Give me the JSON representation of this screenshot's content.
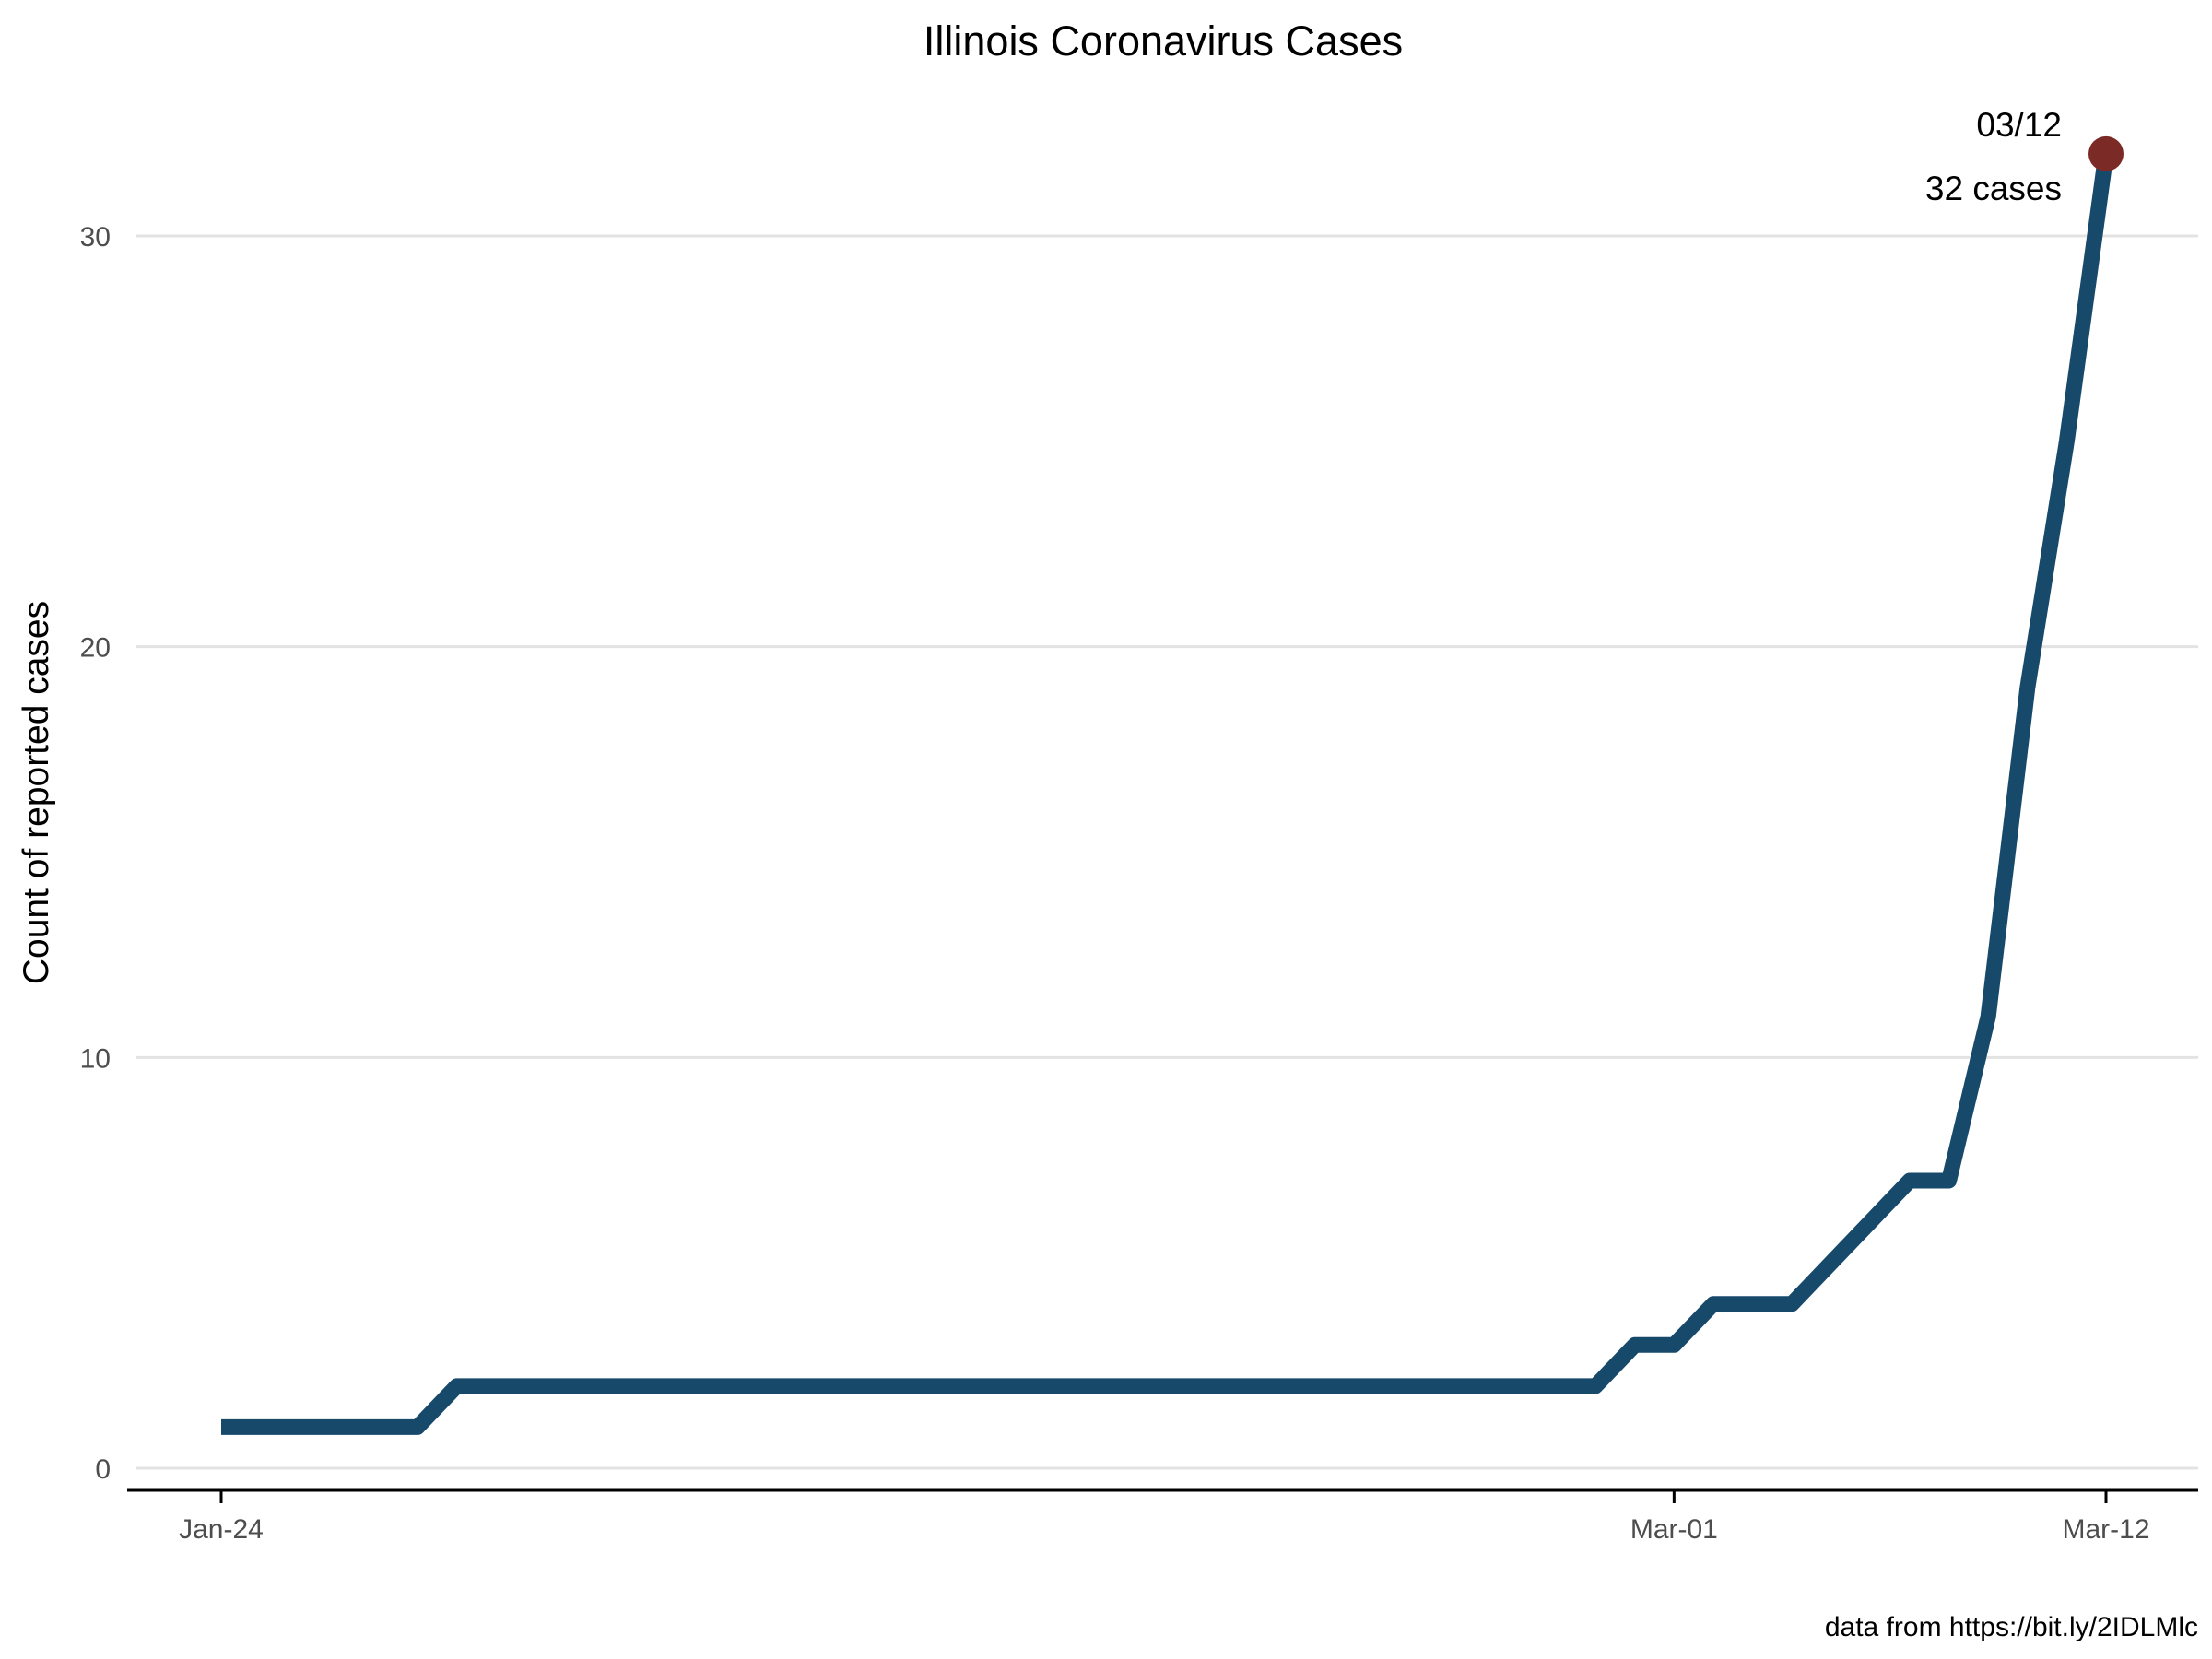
{
  "chart_data": {
    "type": "line",
    "title": "Illinois Coronavirus Cases",
    "xlabel": "",
    "ylabel": "Count of reported cases",
    "caption": "data from https://bit.ly/2IDLMlc",
    "x_ticks": [
      "Jan-24",
      "Mar-01",
      "Mar-12"
    ],
    "y_ticks": [
      0,
      10,
      20,
      30
    ],
    "ylim": [
      0,
      32
    ],
    "grid": true,
    "legend": "none",
    "line_color": "#17496b",
    "highlight_color": "#7b2a26",
    "series": [
      {
        "points": [
          {
            "x": "2020-01-24",
            "y": 1
          },
          {
            "x": "2020-01-29",
            "y": 1
          },
          {
            "x": "2020-01-30",
            "y": 2
          },
          {
            "x": "2020-02-28",
            "y": 2
          },
          {
            "x": "2020-02-29",
            "y": 3
          },
          {
            "x": "2020-03-01",
            "y": 3
          },
          {
            "x": "2020-03-02",
            "y": 4
          },
          {
            "x": "2020-03-04",
            "y": 4
          },
          {
            "x": "2020-03-07",
            "y": 7
          },
          {
            "x": "2020-03-08",
            "y": 7
          },
          {
            "x": "2020-03-09",
            "y": 11
          },
          {
            "x": "2020-03-10",
            "y": 19
          },
          {
            "x": "2020-03-11",
            "y": 25
          },
          {
            "x": "2020-03-12",
            "y": 32
          }
        ]
      }
    ],
    "annotation": {
      "x": "2020-03-12",
      "y": 32,
      "date_label": "03/12",
      "count_label": "32 cases"
    }
  }
}
